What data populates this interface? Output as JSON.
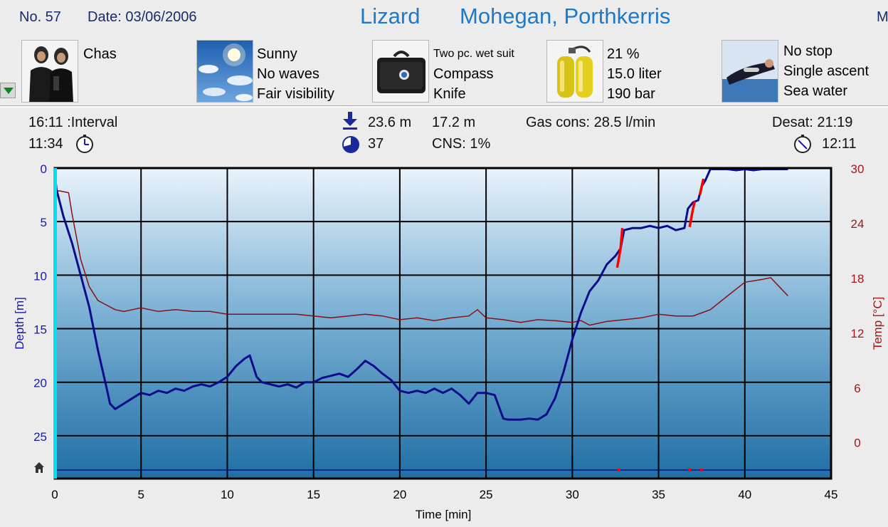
{
  "header": {
    "dive_no": "No. 57",
    "date": "Date: 03/06/2006",
    "location": "Lizard",
    "site": "Mohegan, Porthkerris",
    "more_indicator": "M"
  },
  "panels": {
    "buddy": {
      "name": "Chas"
    },
    "conditions": {
      "lines": [
        "Sunny",
        "No waves",
        "Fair visibility"
      ]
    },
    "equipment": {
      "suit": "Two pc. wet suit",
      "lines": [
        "Compass",
        "Knife"
      ]
    },
    "gas": {
      "lines": [
        "21 %",
        "15.0 liter",
        "190 bar"
      ]
    },
    "dive_type": {
      "lines": [
        "No stop",
        "Single ascent",
        "Sea water"
      ]
    }
  },
  "stats": {
    "interval_time": "16:11",
    "interval_label": ":Interval",
    "entry_time": "11:34",
    "max_depth": "23.6 m",
    "avg_depth": "17.2 m",
    "dive_time": "37",
    "cns": "CNS:  1%",
    "gas_cons": "Gas cons: 28.5 l/min",
    "desat": "Desat: 21:19",
    "exit_time": "12:11"
  },
  "icons": {
    "menu": "dropdown-arrow-icon",
    "max_depth": "down-arrow-icon",
    "duration": "pie-clock-icon",
    "entry_clock": "clock-icon",
    "exit_clock": "clock-icon",
    "surface_marker": "house-icon"
  },
  "colors": {
    "depth": "#0b0c8a",
    "temperature": "#8b1010",
    "ascent_warning": "#ff0000",
    "depth_axis_label": "#1a1aa0",
    "temp_axis_label": "#a01818",
    "title_blue": "#1f78c8"
  },
  "chart_data": {
    "type": "line",
    "xlabel": "Time [min]",
    "ylabel": "Depth [m]",
    "y2label": "Temp [°C]",
    "xlim": [
      0,
      45
    ],
    "ylim": [
      0,
      29
    ],
    "y_inverted": true,
    "y2lim": [
      -4,
      30
    ],
    "x_ticks": [
      0,
      5,
      10,
      15,
      20,
      25,
      30,
      35,
      40,
      45
    ],
    "y_ticks": [
      0,
      5,
      10,
      15,
      20,
      25
    ],
    "y2_ticks": [
      30,
      24,
      18,
      12,
      6,
      0
    ],
    "grid": true,
    "series": [
      {
        "name": "Depth",
        "axis": "left",
        "x": [
          0,
          0.1,
          0.5,
          1,
          1.5,
          2,
          2.5,
          3,
          3.2,
          3.5,
          4,
          4.5,
          5,
          5.5,
          6,
          6.5,
          7,
          7.5,
          8,
          8.5,
          9,
          9.5,
          10,
          10.5,
          11,
          11.3,
          11.7,
          12,
          12.5,
          13,
          13.5,
          14,
          14.5,
          15,
          15.5,
          16,
          16.5,
          17,
          17.5,
          18,
          18.5,
          19,
          19.5,
          20,
          20.5,
          21,
          21.5,
          22,
          22.5,
          23,
          23.5,
          24,
          24.5,
          25,
          25.5,
          26,
          26.3,
          26.7,
          27,
          27.5,
          28,
          28.5,
          29,
          29.5,
          30,
          30.5,
          31,
          31.5,
          32,
          32.5,
          32.8,
          33,
          33.5,
          34,
          34.5,
          35,
          35.5,
          36,
          36.5,
          36.7,
          37,
          37.3,
          37.5,
          37.7,
          38,
          38.5,
          39,
          39.5,
          40,
          40.5,
          41,
          41.5,
          42,
          42.5
        ],
        "y": [
          0.5,
          2,
          4.5,
          7,
          10,
          13,
          17,
          20.5,
          22,
          22.5,
          22,
          21.5,
          21,
          21.2,
          20.8,
          21,
          20.6,
          20.8,
          20.4,
          20.2,
          20.4,
          20,
          19.5,
          18.5,
          17.8,
          17.5,
          19.5,
          20,
          20.2,
          20.4,
          20.2,
          20.5,
          20,
          20,
          19.6,
          19.4,
          19.2,
          19.5,
          18.8,
          18,
          18.5,
          19.2,
          19.8,
          20.8,
          21,
          20.8,
          21,
          20.6,
          21,
          20.6,
          21.2,
          22,
          21,
          21,
          21.2,
          23.4,
          23.5,
          23.5,
          23.5,
          23.4,
          23.5,
          23,
          21.5,
          19,
          16,
          13.5,
          11.5,
          10.5,
          9,
          8.2,
          7.5,
          5.8,
          5.6,
          5.6,
          5.4,
          5.6,
          5.4,
          5.8,
          5.6,
          3.8,
          3.2,
          3.0,
          1.7,
          1.2,
          0.1,
          0.1,
          0.1,
          0.2,
          0.1,
          0.2,
          0.1,
          0.1,
          0.1,
          0.1
        ]
      },
      {
        "name": "Temperature",
        "axis": "right",
        "x": [
          0,
          0.3,
          0.8,
          1,
          1.5,
          2,
          2.5,
          3,
          3.5,
          4,
          4.5,
          5,
          5.5,
          6,
          7,
          8,
          9,
          10,
          11,
          12,
          13,
          14,
          15,
          16,
          17,
          18,
          19,
          20,
          21,
          22,
          23,
          24,
          24.5,
          25,
          26,
          27,
          28,
          29,
          30,
          30.5,
          31,
          32,
          33,
          34,
          35,
          36,
          37,
          38,
          39,
          40,
          41,
          41.5,
          42,
          42.5
        ],
        "y": [
          27.5,
          27.5,
          27.3,
          25,
          20,
          17,
          15.5,
          15,
          14.5,
          14.3,
          14.5,
          14.7,
          14.5,
          14.3,
          14.5,
          14.3,
          14.3,
          14,
          14,
          14,
          14,
          14,
          13.8,
          13.6,
          13.8,
          14,
          13.8,
          13.4,
          13.6,
          13.3,
          13.6,
          13.8,
          14.5,
          13.6,
          13.4,
          13.1,
          13.4,
          13.3,
          13.1,
          13.3,
          12.8,
          13.2,
          13.4,
          13.6,
          14,
          13.8,
          13.8,
          14.5,
          16,
          17.5,
          17.8,
          18,
          17,
          16
        ]
      },
      {
        "name": "Fast ascent",
        "axis": "left",
        "segments": [
          {
            "x": [
              32.6,
              32.8,
              32.9
            ],
            "y": [
              9.3,
              7.5,
              5.6
            ]
          },
          {
            "x": [
              36.8,
              37.0,
              37.1
            ],
            "y": [
              5.5,
              3.8,
              3.1
            ]
          },
          {
            "x": [
              37.4,
              37.5,
              37.6
            ],
            "y": [
              2.5,
              1.7,
              1.0
            ]
          }
        ]
      }
    ],
    "surface_line_depth": 28.2,
    "markers": [
      {
        "x": 32.7,
        "y": 28.2
      },
      {
        "x": 36.8,
        "y": 28.2
      },
      {
        "x": 37.5,
        "y": 28.2
      }
    ]
  }
}
